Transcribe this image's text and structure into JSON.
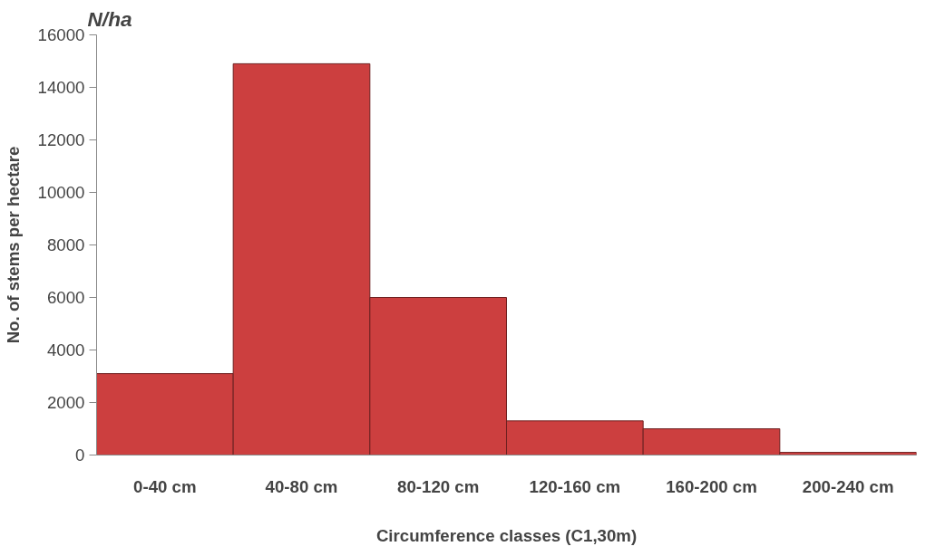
{
  "chart_data": {
    "type": "bar",
    "title": "N/ha",
    "xlabel": "Circumference classes (C1,30m)",
    "ylabel": "No. of stems per hectare",
    "categories": [
      "0-40 cm",
      "40-80 cm",
      "80-120 cm",
      "120-160 cm",
      "160-200 cm",
      "200-240 cm"
    ],
    "values": [
      3100,
      14900,
      6000,
      1300,
      1000,
      100
    ],
    "color": "#cc3f3f",
    "ylim": [
      0,
      16000
    ],
    "yticks": [
      0,
      2000,
      4000,
      6000,
      8000,
      10000,
      12000,
      14000,
      16000
    ],
    "grid": false
  }
}
